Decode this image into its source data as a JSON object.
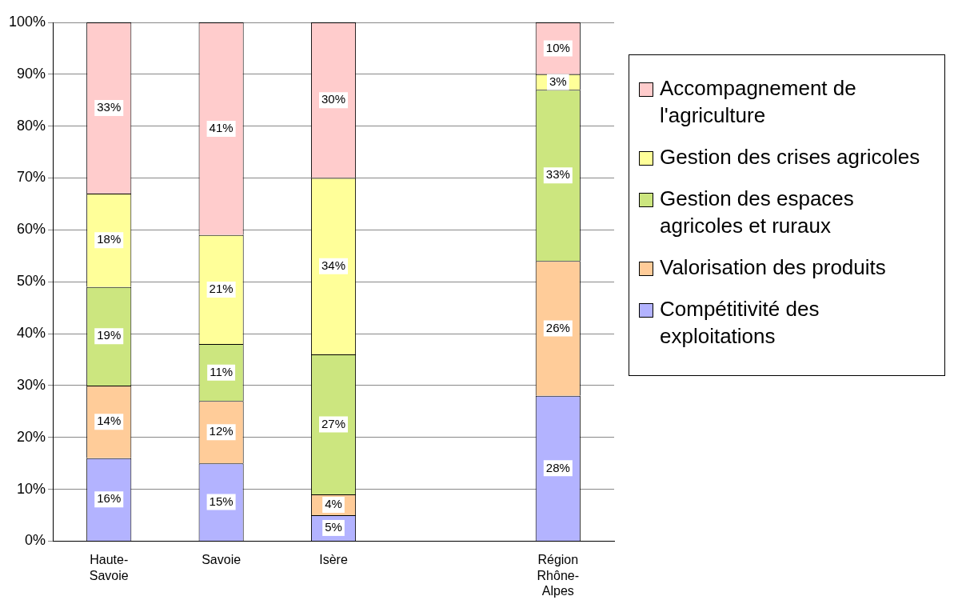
{
  "chart_data": {
    "type": "bar",
    "stacked": true,
    "categories": [
      "Haute-Savoie",
      "Savoie",
      "Isère",
      null,
      "Région Rhône-Alpes"
    ],
    "series": [
      {
        "name": "Compétitivité des exploitations",
        "color": "#b3b3ff",
        "values": [
          16,
          15,
          5,
          null,
          28
        ],
        "value_labels": [
          "16%",
          "15%",
          "5%",
          null,
          "28%"
        ]
      },
      {
        "name": "Valorisation des produits",
        "color": "#ffcc99",
        "values": [
          14,
          12,
          4,
          null,
          26
        ],
        "value_labels": [
          "14%",
          "12%",
          "4%",
          null,
          "26%"
        ]
      },
      {
        "name": "Gestion des espaces agricoles et ruraux",
        "color": "#cce67f",
        "values": [
          19,
          11,
          27,
          null,
          33
        ],
        "value_labels": [
          "19%",
          "11%",
          "27%",
          null,
          "33%"
        ]
      },
      {
        "name": "Gestion des crises agricoles",
        "color": "#ffff99",
        "values": [
          18,
          21,
          34,
          null,
          3
        ],
        "value_labels": [
          "18%",
          "21%",
          "34%",
          null,
          "3%"
        ]
      },
      {
        "name": "Accompagnement de l'agriculture",
        "color": "#ffcccc",
        "values": [
          33,
          41,
          30,
          null,
          10
        ],
        "value_labels": [
          "33%",
          "41%",
          "30%",
          null,
          "10%"
        ]
      }
    ],
    "ylim": [
      0,
      100
    ],
    "yticks": [
      {
        "value": 0,
        "label": "0%"
      },
      {
        "value": 10,
        "label": "10%"
      },
      {
        "value": 20,
        "label": "20%"
      },
      {
        "value": 30,
        "label": "30%"
      },
      {
        "value": 40,
        "label": "40%"
      },
      {
        "value": 50,
        "label": "50%"
      },
      {
        "value": 60,
        "label": "60%"
      },
      {
        "value": 70,
        "label": "70%"
      },
      {
        "value": 80,
        "label": "80%"
      },
      {
        "value": 90,
        "label": "90%"
      },
      {
        "value": 100,
        "label": "100%"
      }
    ],
    "grid": "y",
    "legend": "right"
  }
}
